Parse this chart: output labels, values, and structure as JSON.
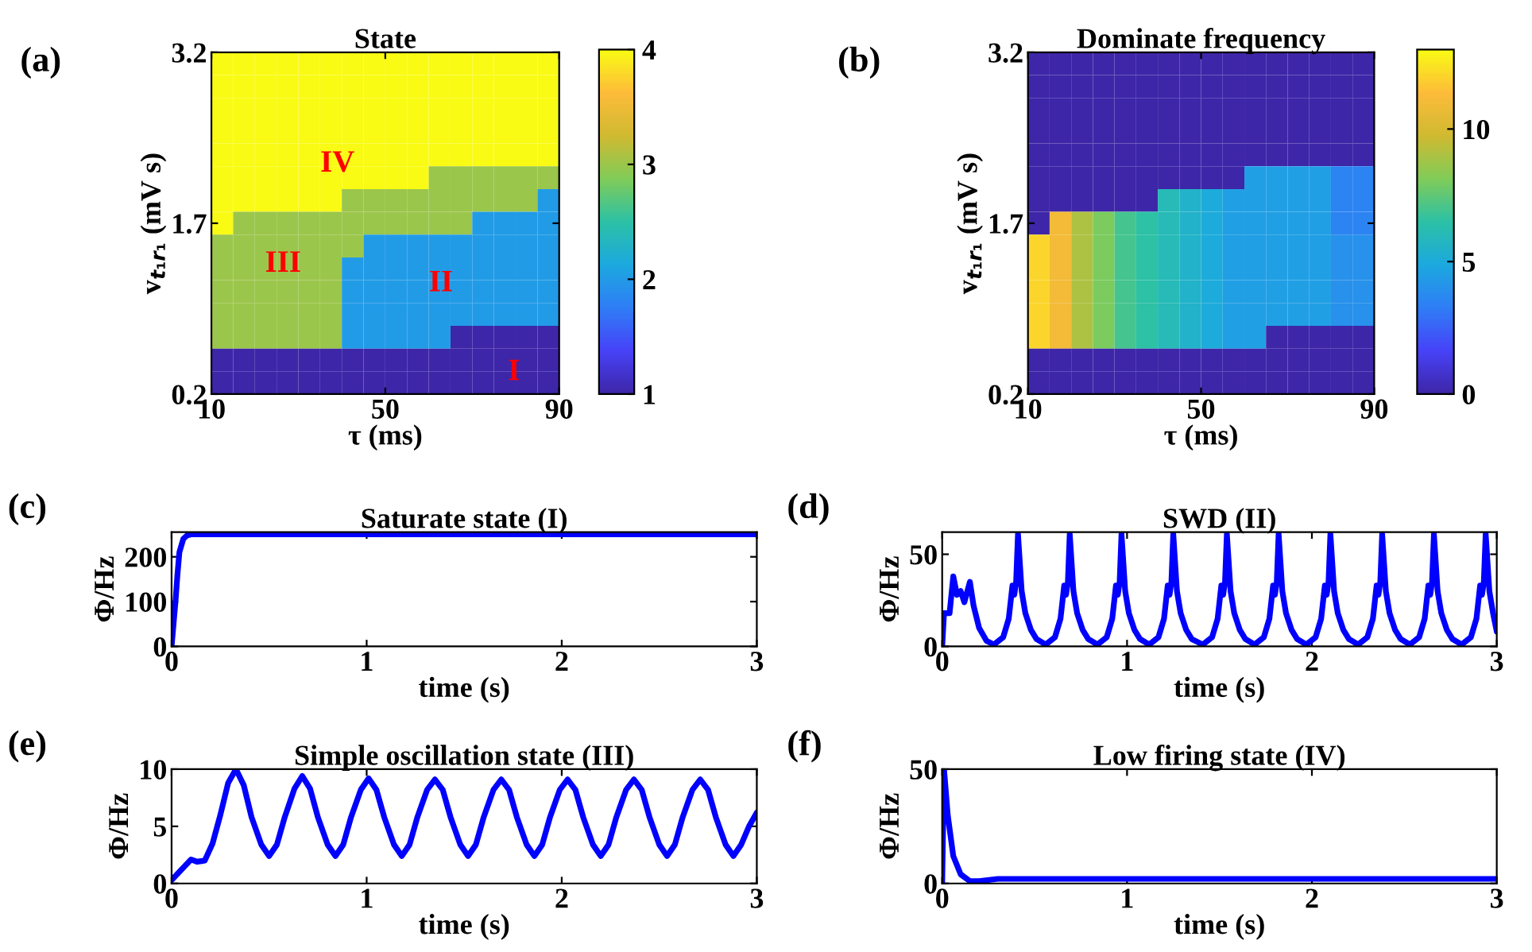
{
  "chart_data": [
    {
      "type": "heatmap",
      "title": "State",
      "xlabel": "τ (ms)",
      "ylabel": "v$_{t₁r₁}$ (mV s)",
      "xlim": [
        10,
        90
      ],
      "ylim": [
        0.2,
        3.2
      ],
      "xticks": [
        10,
        50,
        90
      ],
      "yticks": [
        0.2,
        1.7,
        3.2
      ],
      "clim": [
        1,
        4
      ],
      "cticks": [
        1,
        2,
        3,
        4
      ],
      "cells": [
        [
          4,
          4,
          4,
          4,
          4,
          4,
          4,
          4,
          4,
          4,
          4,
          4,
          4,
          4,
          4,
          4
        ],
        [
          4,
          4,
          4,
          4,
          4,
          4,
          4,
          4,
          4,
          4,
          4,
          4,
          4,
          4,
          4,
          4
        ],
        [
          4,
          4,
          4,
          4,
          4,
          4,
          4,
          4,
          4,
          4,
          4,
          4,
          4,
          4,
          4,
          4
        ],
        [
          4,
          4,
          4,
          4,
          4,
          4,
          4,
          4,
          4,
          4,
          4,
          4,
          4,
          4,
          4,
          4
        ],
        [
          4,
          4,
          4,
          4,
          4,
          4,
          4,
          4,
          4,
          4,
          4,
          4,
          4,
          4,
          4,
          4
        ],
        [
          4,
          4,
          4,
          4,
          4,
          4,
          4,
          4,
          4,
          4,
          3,
          3,
          3,
          3,
          3,
          3
        ],
        [
          4,
          4,
          4,
          4,
          4,
          4,
          3,
          3,
          3,
          3,
          3,
          3,
          3,
          3,
          3,
          2
        ],
        [
          4,
          3,
          3,
          3,
          3,
          3,
          3,
          3,
          3,
          3,
          3,
          3,
          2,
          2,
          2,
          2
        ],
        [
          3,
          3,
          3,
          3,
          3,
          3,
          3,
          2,
          2,
          2,
          2,
          2,
          2,
          2,
          2,
          2
        ],
        [
          3,
          3,
          3,
          3,
          3,
          3,
          2,
          2,
          2,
          2,
          2,
          2,
          2,
          2,
          2,
          2
        ],
        [
          3,
          3,
          3,
          3,
          3,
          3,
          2,
          2,
          2,
          2,
          2,
          2,
          2,
          2,
          2,
          2
        ],
        [
          3,
          3,
          3,
          3,
          3,
          3,
          2,
          2,
          2,
          2,
          2,
          2,
          2,
          2,
          2,
          2
        ],
        [
          3,
          3,
          3,
          3,
          3,
          3,
          2,
          2,
          2,
          2,
          2,
          1,
          1,
          1,
          1,
          1
        ],
        [
          1,
          1,
          1,
          1,
          1,
          1,
          1,
          1,
          1,
          1,
          1,
          1,
          1,
          1,
          1,
          1
        ],
        [
          1,
          1,
          1,
          1,
          1,
          1,
          1,
          1,
          1,
          1,
          1,
          1,
          1,
          1,
          1,
          1
        ]
      ],
      "annotations": [
        "(a)",
        "IV",
        "III",
        "II",
        "I"
      ]
    },
    {
      "type": "heatmap",
      "title": "Dominate frequency",
      "xlabel": "τ (ms)",
      "ylabel": "v$_{t₁r₁}$ (mV s)",
      "xlim": [
        10,
        90
      ],
      "ylim": [
        0.2,
        3.2
      ],
      "xticks": [
        10,
        50,
        90
      ],
      "yticks": [
        0.2,
        1.7,
        3.2
      ],
      "clim": [
        0,
        13
      ],
      "cticks": [
        0,
        5,
        10
      ],
      "cells": [
        [
          0,
          0,
          0,
          0,
          0,
          0,
          0,
          0,
          0,
          0,
          0,
          0,
          0,
          0,
          0,
          0
        ],
        [
          0,
          0,
          0,
          0,
          0,
          0,
          0,
          0,
          0,
          0,
          0,
          0,
          0,
          0,
          0,
          0
        ],
        [
          0,
          0,
          0,
          0,
          0,
          0,
          0,
          0,
          0,
          0,
          0,
          0,
          0,
          0,
          0,
          0
        ],
        [
          0,
          0,
          0,
          0,
          0,
          0,
          0,
          0,
          0,
          0,
          0,
          0,
          0,
          0,
          0,
          0
        ],
        [
          0,
          0,
          0,
          0,
          0,
          0,
          0,
          0,
          0,
          0,
          0,
          0,
          0,
          0,
          0,
          0
        ],
        [
          0,
          0,
          0,
          0,
          0,
          0,
          0,
          0,
          0,
          0,
          4.5,
          4.5,
          4.5,
          4.5,
          3.5,
          3.5
        ],
        [
          0,
          0,
          0,
          0,
          0,
          0,
          6,
          5.5,
          5,
          4.5,
          4.5,
          4.5,
          4.5,
          4.5,
          3.5,
          3.5
        ],
        [
          0,
          11,
          9,
          8,
          7,
          6.5,
          6,
          5.5,
          5,
          4.5,
          4.5,
          4.5,
          4.5,
          4.5,
          3.5,
          3.5
        ],
        [
          12,
          11,
          9,
          8,
          7,
          6.5,
          6,
          5.5,
          5,
          4.5,
          4.5,
          4.5,
          4.5,
          4.5,
          4,
          4
        ],
        [
          12,
          11,
          9,
          8,
          7,
          6.5,
          6,
          5.5,
          5,
          4.5,
          4.5,
          4.5,
          4.5,
          4.5,
          4,
          4
        ],
        [
          12,
          11,
          9,
          8,
          7,
          6.5,
          6,
          5.5,
          5,
          4.5,
          4.5,
          4.5,
          4.5,
          4.5,
          4,
          4
        ],
        [
          12,
          11,
          9,
          8,
          7,
          6.5,
          6,
          5.5,
          5,
          4.5,
          4.5,
          4.5,
          4.5,
          4.5,
          4,
          4
        ],
        [
          12,
          11,
          9,
          8,
          7,
          6.5,
          6,
          5.5,
          5,
          4.5,
          4.5,
          0,
          0,
          0,
          0,
          0
        ],
        [
          0,
          0,
          0,
          0,
          0,
          0,
          0,
          0,
          0,
          0,
          0,
          0,
          0,
          0,
          0,
          0
        ],
        [
          0,
          0,
          0,
          0,
          0,
          0,
          0,
          0,
          0,
          0,
          0,
          0,
          0,
          0,
          0,
          0
        ]
      ],
      "annotations": [
        "(b)"
      ]
    },
    {
      "type": "line",
      "title": "Saturate state (I)",
      "xlabel": "time (s)",
      "ylabel": "Φ/Hz",
      "xlim": [
        0,
        3
      ],
      "ylim": [
        0,
        255
      ],
      "xticks": [
        0,
        1,
        2,
        3
      ],
      "yticks": [
        0,
        100,
        200
      ],
      "series": [
        {
          "color": "#0000ff",
          "x": [
            0,
            0.01,
            0.02,
            0.03,
            0.04,
            0.06,
            0.08,
            0.1,
            0.5,
            1,
            1.5,
            2,
            2.5,
            3
          ],
          "values": [
            0,
            50,
            100,
            160,
            210,
            240,
            248,
            250,
            250,
            250,
            250,
            250,
            250,
            250
          ]
        }
      ],
      "annotations": [
        "(c)"
      ]
    },
    {
      "type": "line",
      "title": "SWD (II)",
      "xlabel": "time (s)",
      "ylabel": "Φ/Hz",
      "xlim": [
        0,
        3
      ],
      "ylim": [
        0,
        62
      ],
      "xticks": [
        0,
        1,
        2,
        3
      ],
      "yticks": [
        0,
        50
      ],
      "series": [
        {
          "color": "#0000ff",
          "x": [
            0,
            0.01,
            0.04,
            0.06,
            0.08,
            0.1,
            0.12,
            0.15,
            0.17,
            0.2,
            0.24,
            0.28,
            0.33,
            0.36,
            0.38,
            0.39,
            0.4,
            0.41,
            0.43,
            0.45,
            0.48,
            0.51,
            0.56,
            0.61,
            0.64,
            0.66,
            0.67,
            0.68,
            0.69,
            0.71,
            0.73,
            0.76,
            0.79,
            0.84,
            0.89,
            0.92,
            0.94,
            0.95,
            0.96,
            0.97,
            0.99,
            1.01,
            1.04,
            1.07,
            1.12,
            1.17,
            1.2,
            1.22,
            1.23,
            1.24,
            1.25,
            1.27,
            1.29,
            1.32,
            1.35,
            1.41,
            1.46,
            1.49,
            1.51,
            1.52,
            1.53,
            1.54,
            1.56,
            1.58,
            1.61,
            1.64,
            1.69,
            1.74,
            1.77,
            1.79,
            1.8,
            1.81,
            1.82,
            1.84,
            1.86,
            1.89,
            1.92,
            1.97,
            2.02,
            2.05,
            2.07,
            2.08,
            2.09,
            2.1,
            2.12,
            2.14,
            2.17,
            2.2,
            2.25,
            2.3,
            2.33,
            2.35,
            2.36,
            2.37,
            2.38,
            2.4,
            2.42,
            2.45,
            2.48,
            2.53,
            2.58,
            2.61,
            2.63,
            2.64,
            2.65,
            2.66,
            2.68,
            2.7,
            2.73,
            2.76,
            2.81,
            2.86,
            2.89,
            2.91,
            2.92,
            2.93,
            2.94,
            2.96,
            2.98,
            3.0
          ],
          "values": [
            0,
            18,
            18,
            38,
            28,
            30,
            24,
            35,
            22,
            10,
            3,
            1,
            5,
            15,
            33,
            28,
            35,
            61,
            30,
            18,
            9,
            4,
            1,
            5,
            15,
            33,
            28,
            35,
            61,
            30,
            18,
            9,
            4,
            1,
            5,
            15,
            33,
            28,
            35,
            61,
            30,
            18,
            9,
            4,
            1,
            5,
            15,
            33,
            28,
            35,
            61,
            30,
            18,
            9,
            4,
            1,
            5,
            15,
            33,
            28,
            35,
            61,
            30,
            18,
            9,
            4,
            1,
            5,
            15,
            33,
            28,
            35,
            61,
            30,
            18,
            9,
            4,
            1,
            5,
            15,
            33,
            28,
            35,
            61,
            30,
            18,
            9,
            4,
            1,
            5,
            15,
            33,
            28,
            35,
            61,
            30,
            18,
            9,
            4,
            1,
            5,
            15,
            33,
            28,
            35,
            61,
            30,
            18,
            9,
            4,
            1,
            5,
            15,
            33,
            28,
            35,
            61,
            30,
            18,
            8
          ]
        }
      ],
      "annotations": [
        "(d)"
      ]
    },
    {
      "type": "line",
      "title": "Simple oscillation state (III)",
      "xlabel": "time (s)",
      "ylabel": "Φ/Hz",
      "xlim": [
        0,
        3
      ],
      "ylim": [
        0,
        10
      ],
      "xticks": [
        0,
        1,
        2,
        3
      ],
      "yticks": [
        0,
        5,
        10
      ],
      "series": [
        {
          "color": "#0000ff",
          "x": [
            0,
            0.05,
            0.1,
            0.13,
            0.17,
            0.21,
            0.25,
            0.29,
            0.33,
            0.37,
            0.41,
            0.46,
            0.5,
            0.54,
            0.58,
            0.63,
            0.67,
            0.71,
            0.75,
            0.8,
            0.84,
            0.88,
            0.92,
            0.97,
            1.01,
            1.05,
            1.09,
            1.14,
            1.18,
            1.22,
            1.26,
            1.31,
            1.35,
            1.39,
            1.43,
            1.48,
            1.52,
            1.56,
            1.6,
            1.65,
            1.69,
            1.73,
            1.77,
            1.82,
            1.86,
            1.9,
            1.94,
            1.99,
            2.03,
            2.07,
            2.11,
            2.16,
            2.2,
            2.24,
            2.28,
            2.33,
            2.37,
            2.41,
            2.45,
            2.5,
            2.54,
            2.58,
            2.62,
            2.67,
            2.71,
            2.75,
            2.79,
            2.84,
            2.88,
            2.92,
            2.96,
            3.0
          ],
          "values": [
            0.3,
            1.2,
            2.1,
            1.9,
            2.0,
            3.5,
            6,
            8.8,
            10,
            8.6,
            5.8,
            3.4,
            2.4,
            3.4,
            5.8,
            8.3,
            9.4,
            8.3,
            5.8,
            3.4,
            2.4,
            3.4,
            5.8,
            8.2,
            9.2,
            8.2,
            5.8,
            3.4,
            2.4,
            3.4,
            5.8,
            8.2,
            9.1,
            8.2,
            5.8,
            3.4,
            2.4,
            3.4,
            5.8,
            8.2,
            9.1,
            8.2,
            5.8,
            3.4,
            2.4,
            3.4,
            5.8,
            8.2,
            9.1,
            8.2,
            5.8,
            3.4,
            2.4,
            3.4,
            5.8,
            8.2,
            9.1,
            8.2,
            5.8,
            3.4,
            2.4,
            3.4,
            5.8,
            8.2,
            9.1,
            8.2,
            5.8,
            3.4,
            2.4,
            3.4,
            5.0,
            6.2
          ]
        }
      ],
      "annotations": [
        "(e)"
      ]
    },
    {
      "type": "line",
      "title": "Low firing state (IV)",
      "xlabel": "time (s)",
      "ylabel": "Φ/Hz",
      "xlim": [
        0,
        3
      ],
      "ylim": [
        0,
        50
      ],
      "xticks": [
        0,
        1,
        2,
        3
      ],
      "yticks": [
        0,
        50
      ],
      "series": [
        {
          "color": "#0000ff",
          "x": [
            0,
            0.01,
            0.03,
            0.06,
            0.1,
            0.15,
            0.2,
            0.3,
            1,
            2,
            3
          ],
          "values": [
            0,
            50,
            30,
            12,
            4,
            1,
            1,
            2,
            2,
            2,
            2
          ]
        }
      ],
      "annotations": [
        "(f)"
      ]
    }
  ]
}
